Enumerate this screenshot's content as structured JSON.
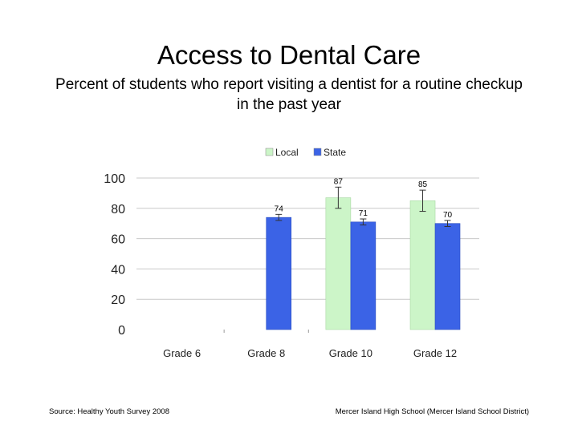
{
  "slide": {
    "title": "Access to Dental Care",
    "subtitle": "Percent of students who report visiting a dentist for a routine checkup in the past year",
    "source": "Source: Healthy Youth Survey 2008",
    "attribution": "Mercer Island High School (Mercer Island School District)"
  },
  "chart_data": {
    "type": "bar",
    "categories": [
      "Grade 6",
      "Grade 8",
      "Grade 10",
      "Grade 12"
    ],
    "series": [
      {
        "name": "Local",
        "color": "#ccf5c8",
        "values": [
          null,
          null,
          87,
          85
        ],
        "labels": [
          "",
          "",
          "87",
          "85"
        ],
        "error": [
          null,
          null,
          7,
          7
        ]
      },
      {
        "name": "State",
        "color": "#3b63e6",
        "values": [
          null,
          74,
          71,
          70
        ],
        "labels": [
          "",
          "74",
          "71",
          "70"
        ],
        "error": [
          null,
          2,
          2,
          2
        ]
      }
    ],
    "ylim": [
      0,
      100
    ],
    "yticks": [
      0,
      20,
      40,
      60,
      80,
      100
    ],
    "grid": true,
    "legend": "top-center",
    "xlabel": "",
    "ylabel": ""
  }
}
